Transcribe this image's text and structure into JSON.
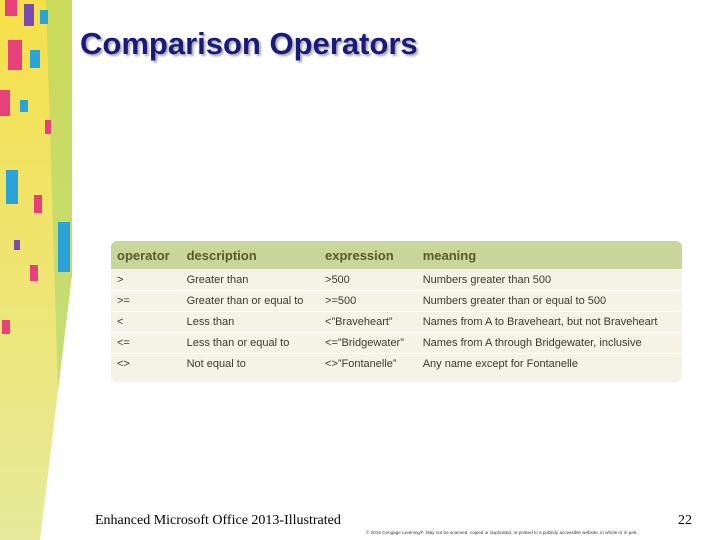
{
  "title": "Comparison Operators",
  "table": {
    "header": [
      "operator",
      "description",
      "expression",
      "meaning"
    ],
    "rows": [
      [
        ">",
        "Greater than",
        ">500",
        "Numbers greater than 500"
      ],
      [
        ">=",
        "Greater than or equal to",
        ">=500",
        "Numbers greater than or equal to 500"
      ],
      [
        "<",
        "Less than",
        "<”Braveheart”",
        "Names from A to Braveheart, but not Braveheart"
      ],
      [
        "<=",
        "Less than or equal to",
        "<=”Bridgewater”",
        "Names from A through Bridgewater, inclusive"
      ],
      [
        "<>",
        "Not equal to",
        "<>”Fontanelle”",
        "Any name except for Fontanelle"
      ]
    ]
  },
  "footer": {
    "course": "Enhanced Microsoft Office 2013-Illustrated",
    "page": "22",
    "copyright": "© 2015 Cengage Learning®. May not be scanned, copied or duplicated, or posted to a publicly accessible website, in whole or in part."
  }
}
